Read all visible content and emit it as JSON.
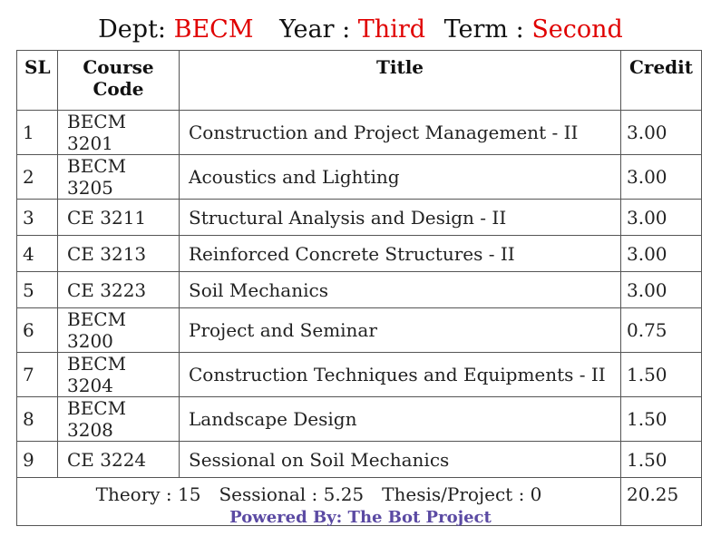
{
  "header": {
    "dept_label": "Dept:",
    "dept_value": "BECM",
    "year_label": "Year :",
    "year_value": "Third",
    "term_label": "Term :",
    "term_value": "Second"
  },
  "table": {
    "columns": [
      "SL",
      "Course Code",
      "Title",
      "Credit"
    ],
    "rows": [
      {
        "sl": "1",
        "code": "BECM 3201",
        "title": "Construction and Project Management - II",
        "credit": "3.00"
      },
      {
        "sl": "2",
        "code": "BECM 3205",
        "title": "Acoustics and Lighting",
        "credit": "3.00"
      },
      {
        "sl": "3",
        "code": "CE 3211",
        "title": "Structural Analysis and Design - II",
        "credit": "3.00"
      },
      {
        "sl": "4",
        "code": "CE 3213",
        "title": "Reinforced Concrete Structures - II",
        "credit": "3.00"
      },
      {
        "sl": "5",
        "code": "CE 3223",
        "title": "Soil Mechanics",
        "credit": "3.00"
      },
      {
        "sl": "6",
        "code": "BECM 3200",
        "title": "Project and Seminar",
        "credit": "0.75"
      },
      {
        "sl": "7",
        "code": "BECM 3204",
        "title": "Construction Techniques and Equipments - II",
        "credit": "1.50"
      },
      {
        "sl": "8",
        "code": "BECM 3208",
        "title": "Landscape Design",
        "credit": "1.50"
      },
      {
        "sl": "9",
        "code": "CE 3224",
        "title": "Sessional on Soil Mechanics",
        "credit": "1.50"
      }
    ],
    "summary": {
      "theory": "Theory : 15",
      "sessional": "Sessional : 5.25",
      "thesis": "Thesis/Project : 0",
      "total_credit": "20.25"
    }
  },
  "footer": {
    "text": "Powered By: The Bot Project"
  },
  "colors": {
    "accent_red": "#e00000",
    "footer_purple": "#5b4aa3"
  }
}
